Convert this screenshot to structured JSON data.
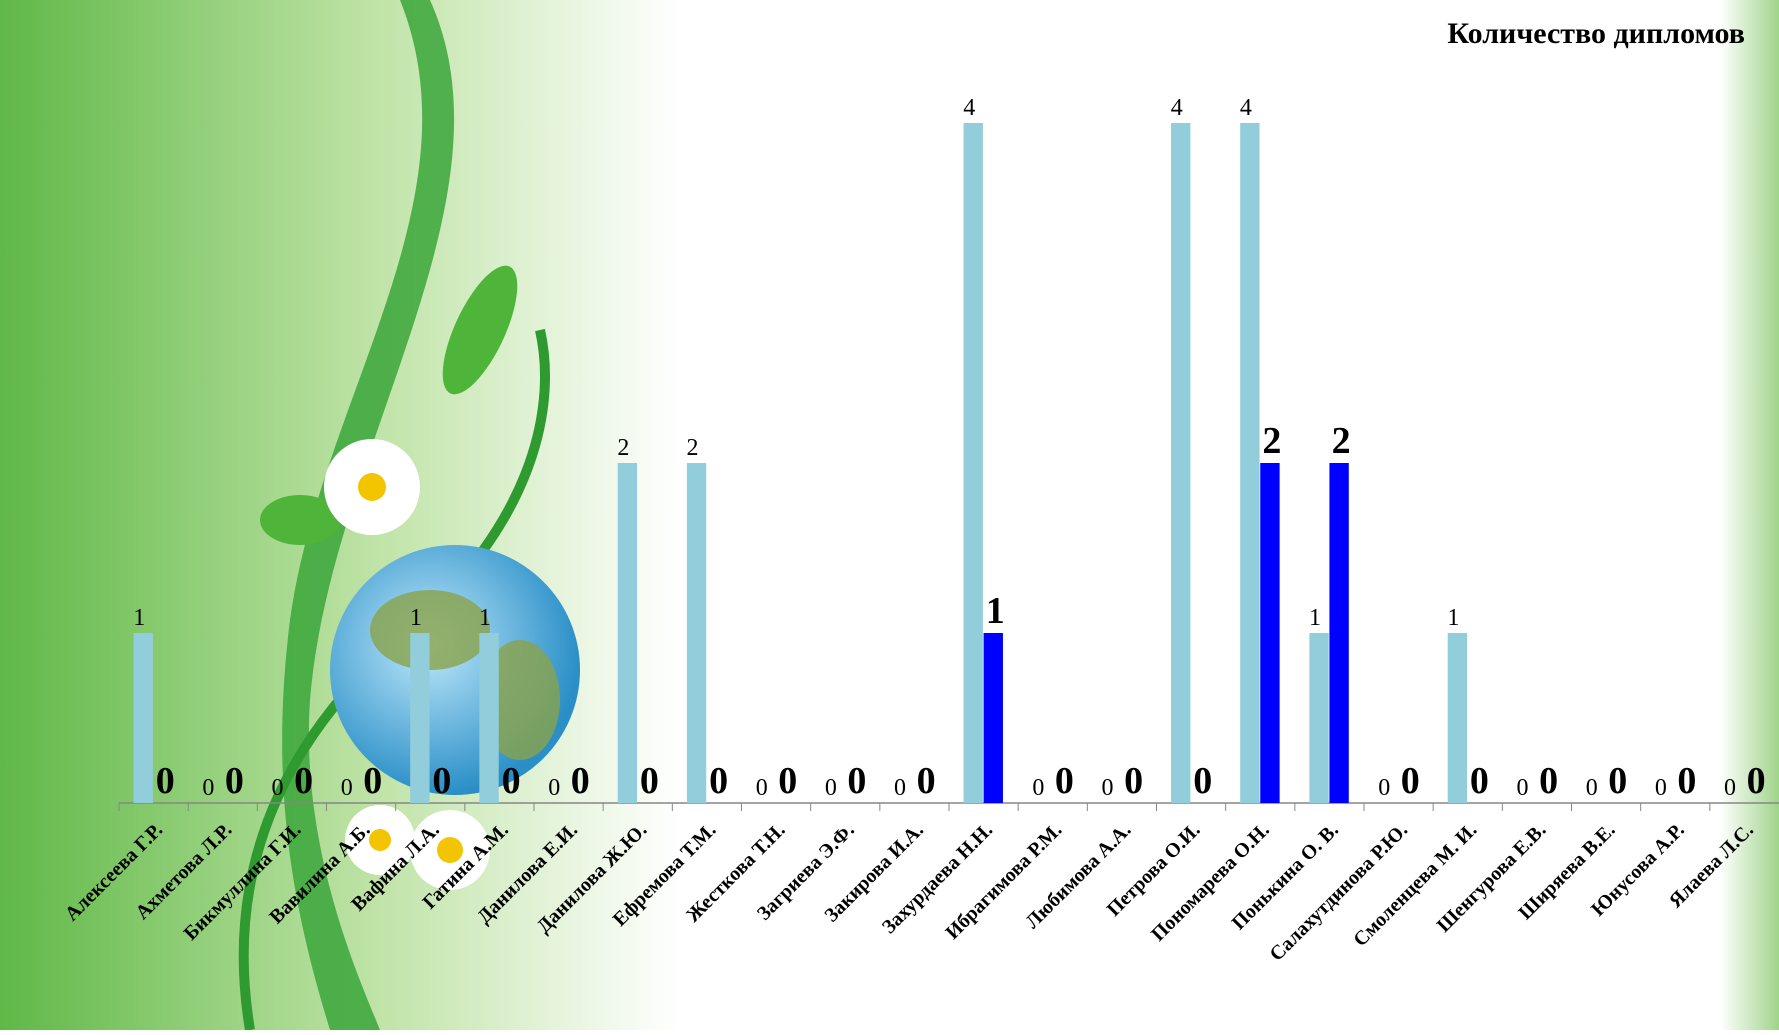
{
  "chart_data": {
    "type": "bar",
    "title": "Количество дипломов",
    "categories": [
      "Алексеева Г.Р.",
      "Ахметова Л.Р.",
      "Бикмуллина Г.И.",
      "Вавилина А.Б.",
      "Вафина Л.А.",
      "Гатина А.М.",
      "Данилова Е.И.",
      "Данилова Ж.Ю.",
      "Ефремова Т.М.",
      "Жесткова Т.Н.",
      "Загриева Э.Ф.",
      "Закирова  И.А.",
      "Захурдаева Н.Н.",
      "Ибрагимова Р.М.",
      "Любимова А.А.",
      "Петрова О.И.",
      "Пономарева О.Н.",
      "Понькина О. В.",
      "Салахутдинова Р.Ю.",
      "Смоленцева М. И.",
      "Шенгурова  Е.В.",
      "Ширяева В.Е.",
      "Юнусова А.Р.",
      "Ялаева Л.С."
    ],
    "series": [
      {
        "color": "#92cddc",
        "values": [
          1,
          0,
          0,
          0,
          1,
          1,
          0,
          2,
          2,
          0,
          0,
          0,
          4,
          0,
          0,
          4,
          4,
          1,
          0,
          1,
          0,
          0,
          0,
          0
        ]
      },
      {
        "color": "#0000ff",
        "values": [
          0,
          0,
          0,
          0,
          0,
          0,
          0,
          0,
          0,
          0,
          0,
          0,
          1,
          0,
          0,
          0,
          2,
          2,
          0,
          0,
          0,
          0,
          0,
          0
        ]
      }
    ],
    "ylim": [
      0,
      4
    ]
  }
}
